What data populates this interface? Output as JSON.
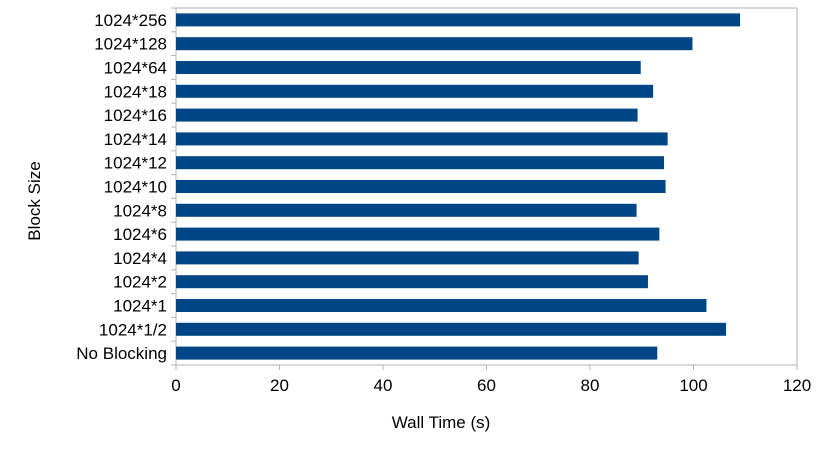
{
  "chart_data": {
    "type": "bar",
    "orientation": "horizontal",
    "categories": [
      "1024*256",
      "1024*128",
      "1024*64",
      "1024*18",
      "1024*16",
      "1024*14",
      "1024*12",
      "1024*10",
      "1024*8",
      "1024*6",
      "1024*4",
      "1024*2",
      "1024*1",
      "1024*1/2",
      "No Blocking"
    ],
    "values": [
      109,
      99.8,
      89.8,
      92.2,
      89.2,
      95,
      94.3,
      94.6,
      89,
      93.4,
      89.4,
      91.2,
      102.5,
      106.3,
      93
    ],
    "xlabel": "Wall Time (s)",
    "ylabel": "Block Size",
    "xlim": [
      0,
      120
    ],
    "xticks": [
      0,
      20,
      40,
      60,
      80,
      100,
      120
    ],
    "grid": false,
    "legend": "none",
    "bar_color": "#004586",
    "axis_color": "#b3b3b3"
  }
}
